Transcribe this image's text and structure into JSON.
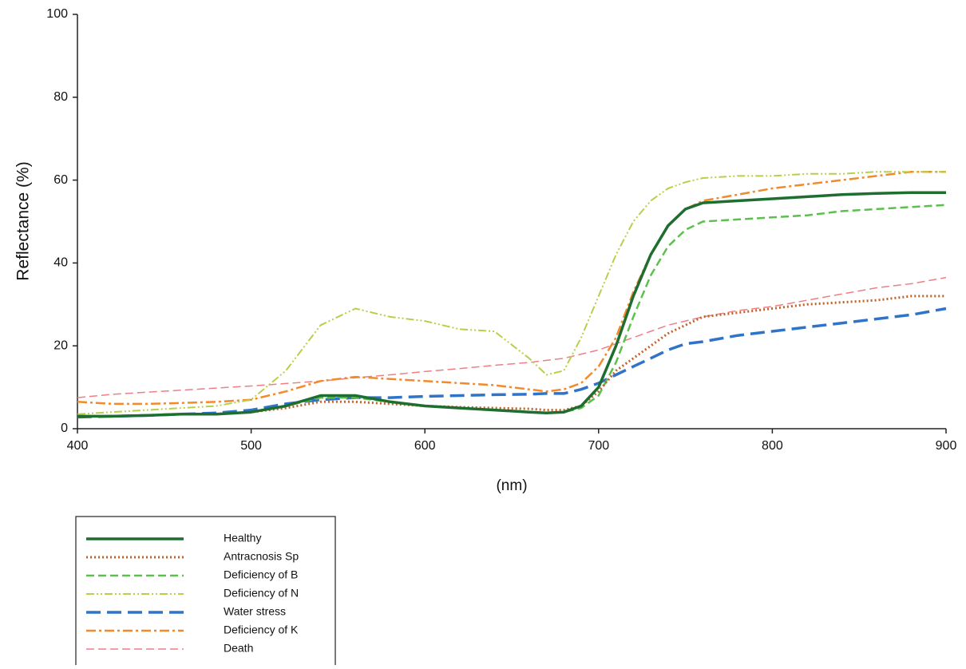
{
  "chart_data": {
    "type": "line",
    "ylabel": "Reflectance  (%)",
    "xlabel": "(nm)",
    "x": [
      400,
      420,
      440,
      460,
      480,
      500,
      520,
      540,
      560,
      580,
      600,
      620,
      640,
      660,
      670,
      680,
      690,
      700,
      710,
      720,
      730,
      740,
      750,
      760,
      780,
      800,
      820,
      840,
      860,
      880,
      900
    ],
    "xlim": [
      400,
      900
    ],
    "xticks": [
      400,
      500,
      600,
      700,
      800,
      900
    ],
    "ylim": [
      0,
      100
    ],
    "yticks": [
      0,
      20,
      40,
      60,
      80,
      100
    ],
    "grid": false,
    "legend": "below",
    "series": [
      {
        "name": "Healthy",
        "color": "#1e6e30",
        "linestyle": "solid",
        "values": [
          3,
          3,
          3.2,
          3.5,
          3.5,
          4,
          5.5,
          8,
          8,
          6.5,
          5.5,
          5,
          4.5,
          4,
          3.8,
          4,
          5.5,
          10,
          20,
          32,
          42,
          49,
          53,
          54.5,
          55,
          55.5,
          56,
          56.5,
          56.8,
          57,
          57
        ]
      },
      {
        "name": "Antracnosis Sp",
        "color": "#c0632a",
        "linestyle": "dotted",
        "values": [
          3,
          3,
          3.2,
          3.5,
          3.5,
          4,
          5,
          6.5,
          6.5,
          6,
          5.5,
          5.2,
          5,
          4.8,
          4.5,
          4.5,
          5.5,
          9,
          14,
          17,
          20,
          23,
          25,
          27,
          28,
          29,
          30,
          30.5,
          31,
          32,
          32
        ]
      },
      {
        "name": "Deficiency of B",
        "color": "#5cbf4e",
        "linestyle": "dashed",
        "values": [
          3,
          3,
          3.2,
          3.5,
          3.5,
          4,
          5.5,
          7.5,
          7.5,
          6.5,
          5.5,
          5,
          4.5,
          4,
          3.8,
          4,
          5,
          8,
          16,
          27,
          37,
          44,
          48,
          50,
          50.5,
          51,
          51.5,
          52.5,
          53,
          53.5,
          54
        ]
      },
      {
        "name": "Deficiency of N",
        "color": "#b8cf4a",
        "linestyle": "dashdotdot",
        "values": [
          3.5,
          4,
          4.5,
          5,
          5.5,
          7,
          14,
          25,
          29,
          27,
          26,
          24,
          23.5,
          17,
          13,
          14,
          22,
          32,
          42,
          50,
          55,
          58,
          59.5,
          60.5,
          61,
          61,
          61.5,
          61.5,
          62,
          62,
          62
        ]
      },
      {
        "name": "Water stress",
        "color": "#2f74c8",
        "linestyle": "longdash",
        "values": [
          2.8,
          3,
          3.2,
          3.5,
          3.8,
          4.5,
          6,
          7,
          7.5,
          7.5,
          7.8,
          8,
          8.2,
          8.3,
          8.5,
          8.5,
          9.5,
          11,
          13,
          15,
          17,
          19,
          20.5,
          21,
          22.5,
          23.5,
          24.5,
          25.5,
          26.5,
          27.5,
          29
        ]
      },
      {
        "name": "Deficiency of K",
        "color": "#f28a2c",
        "linestyle": "dashdot",
        "values": [
          6.5,
          6,
          6,
          6.2,
          6.5,
          7,
          9,
          11.5,
          12.5,
          12,
          11.5,
          11,
          10.5,
          9.5,
          9,
          9.5,
          11,
          15,
          22,
          33,
          42,
          49,
          53,
          55,
          56.5,
          58,
          59,
          60,
          61,
          62,
          62
        ]
      },
      {
        "name": "Death",
        "color": "#ee7f86",
        "linestyle": "thindash",
        "values": [
          7.5,
          8.3,
          8.8,
          9.3,
          9.8,
          10.3,
          10.9,
          11.5,
          12.3,
          13,
          13.8,
          14.5,
          15.3,
          16,
          16.5,
          17,
          18,
          19,
          20.5,
          22,
          23.5,
          25,
          26,
          27,
          28.5,
          29.5,
          31,
          32.5,
          34,
          35,
          36.5
        ]
      }
    ]
  }
}
